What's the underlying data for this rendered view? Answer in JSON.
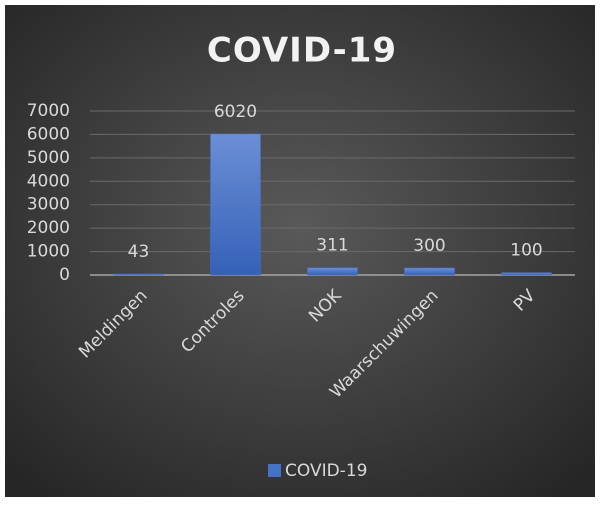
{
  "chart_data": {
    "type": "bar",
    "title": "COVID-19",
    "categories": [
      "Meldingen",
      "Controles",
      "NOK",
      "Waarschuwingen",
      "PV"
    ],
    "series": [
      {
        "name": "COVID-19",
        "color": "#4472c4",
        "values": [
          43,
          6020,
          311,
          300,
          100
        ]
      }
    ],
    "ylim": [
      0,
      7000
    ],
    "yticks": [
      0,
      1000,
      2000,
      3000,
      4000,
      5000,
      6000,
      7000
    ],
    "grid": true,
    "legend": "bottom"
  }
}
